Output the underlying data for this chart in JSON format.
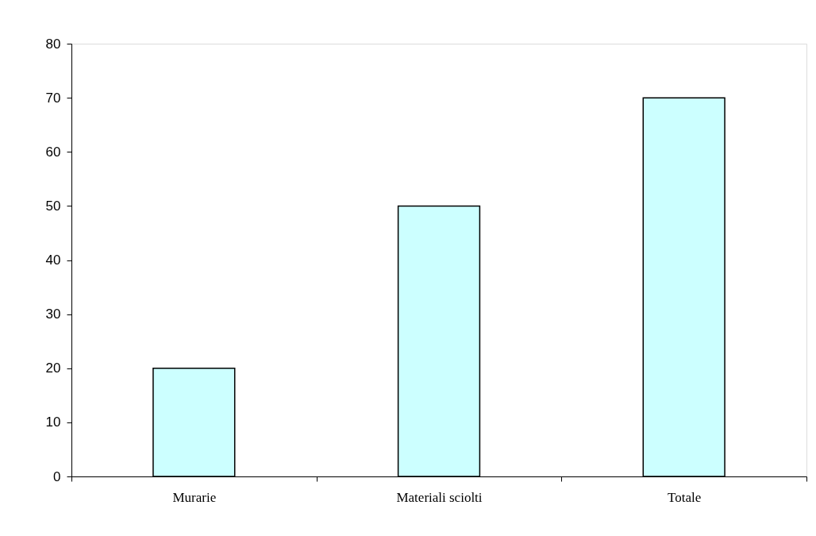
{
  "chart_data": {
    "type": "bar",
    "categories": [
      "Murarie",
      "Materiali sciolti",
      "Totale"
    ],
    "values": [
      20,
      50,
      70
    ],
    "color": "#ccffff",
    "ylim": [
      0,
      80
    ],
    "yticks": [
      0,
      10,
      20,
      30,
      40,
      50,
      60,
      70,
      80
    ],
    "grid": false
  }
}
